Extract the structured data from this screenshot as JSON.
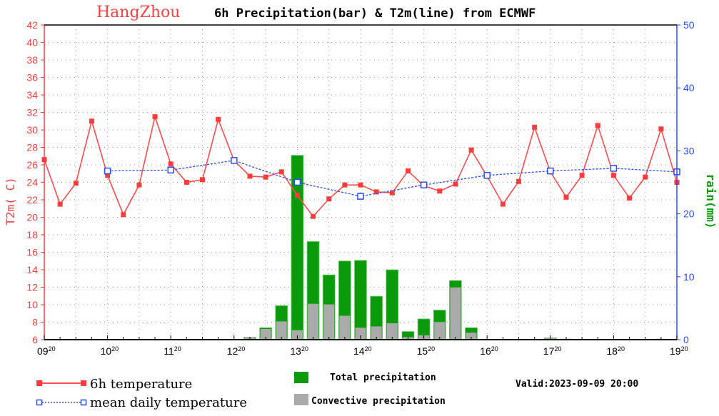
{
  "chart_data": {
    "type": "bar+line",
    "title_city": "HangZhou",
    "title_rest": "6h Precipitation(bar) & T2m(line) from ECMWF",
    "ylabel_left": "T2m( C)",
    "ylabel_right": "rain(mm)",
    "ylim_left": [
      6,
      42
    ],
    "ylim_right": [
      0,
      50
    ],
    "left_ticks": [
      6,
      8,
      10,
      12,
      14,
      16,
      18,
      20,
      22,
      24,
      26,
      28,
      30,
      32,
      34,
      36,
      38,
      40,
      42
    ],
    "right_ticks": [
      0,
      10,
      20,
      30,
      40,
      50
    ],
    "x_ticks": [
      {
        "day": "09",
        "hour": "20"
      },
      {
        "day": "10",
        "hour": "20"
      },
      {
        "day": "11",
        "hour": "20"
      },
      {
        "day": "12",
        "hour": "20"
      },
      {
        "day": "13",
        "hour": "20"
      },
      {
        "day": "14",
        "hour": "20"
      },
      {
        "day": "15",
        "hour": "20"
      },
      {
        "day": "16",
        "hour": "20"
      },
      {
        "day": "17",
        "hour": "20"
      },
      {
        "day": "18",
        "hour": "20"
      },
      {
        "day": "19",
        "hour": "20"
      }
    ],
    "step_hours": 6,
    "series": [
      {
        "name": "6h temperature",
        "axis": "left",
        "color": "#ff3b3b",
        "values": [
          26.6,
          21.5,
          23.9,
          31.0,
          24.8,
          20.3,
          23.7,
          31.5,
          26.1,
          24.0,
          24.3,
          31.2,
          26.5,
          24.7,
          24.6,
          25.2,
          22.5,
          20.1,
          22.1,
          23.7,
          23.7,
          22.9,
          22.8,
          25.3,
          23.6,
          23.0,
          23.8,
          27.7,
          24.7,
          21.5,
          24.1,
          30.3,
          25.2,
          22.3,
          24.8,
          30.5,
          24.8,
          22.2,
          24.6,
          30.1,
          24.0
        ]
      },
      {
        "name": "mean daily temperature",
        "axis": "left",
        "color": "#2a4bff",
        "step_index": [
          4,
          8,
          12,
          16,
          20,
          24,
          28,
          32,
          36,
          40
        ],
        "values": [
          25.3,
          25.4,
          26.5,
          24.0,
          22.4,
          23.7,
          24.8,
          25.3,
          25.6,
          25.2
        ]
      },
      {
        "name": "Total precipitation",
        "axis": "right",
        "color": "#0a9a0a",
        "values": [
          0,
          0,
          0,
          0,
          0,
          0,
          0,
          0,
          0,
          0,
          0,
          0,
          0,
          0.4,
          1.9,
          5.4,
          29.3,
          15.6,
          10.3,
          12.5,
          12.6,
          6.9,
          11.1,
          1.3,
          3.3,
          4.7,
          9.4,
          1.9,
          0,
          0,
          0,
          0,
          0.3,
          0.1,
          0,
          0,
          0,
          0,
          0,
          0.1,
          0
        ]
      },
      {
        "name": "Convective precipitation",
        "axis": "right",
        "color": "#aaaaaa",
        "values": [
          0,
          0,
          0,
          0,
          0,
          0,
          0,
          0,
          0,
          0,
          0,
          0,
          0,
          0.4,
          1.7,
          2.9,
          1.5,
          5.7,
          5.6,
          3.8,
          1.9,
          2.1,
          2.6,
          0.4,
          0.7,
          2.8,
          8.3,
          1.1,
          0,
          0,
          0,
          0,
          0.3,
          0.1,
          0,
          0,
          0,
          0,
          0,
          0.1,
          0
        ]
      }
    ],
    "legend": {
      "temp": "6h temperature",
      "mean": "mean daily temperature",
      "total": "Total precipitation",
      "conv": "Convective precipitation"
    },
    "valid": "Valid:2023-09-09 20:00"
  }
}
